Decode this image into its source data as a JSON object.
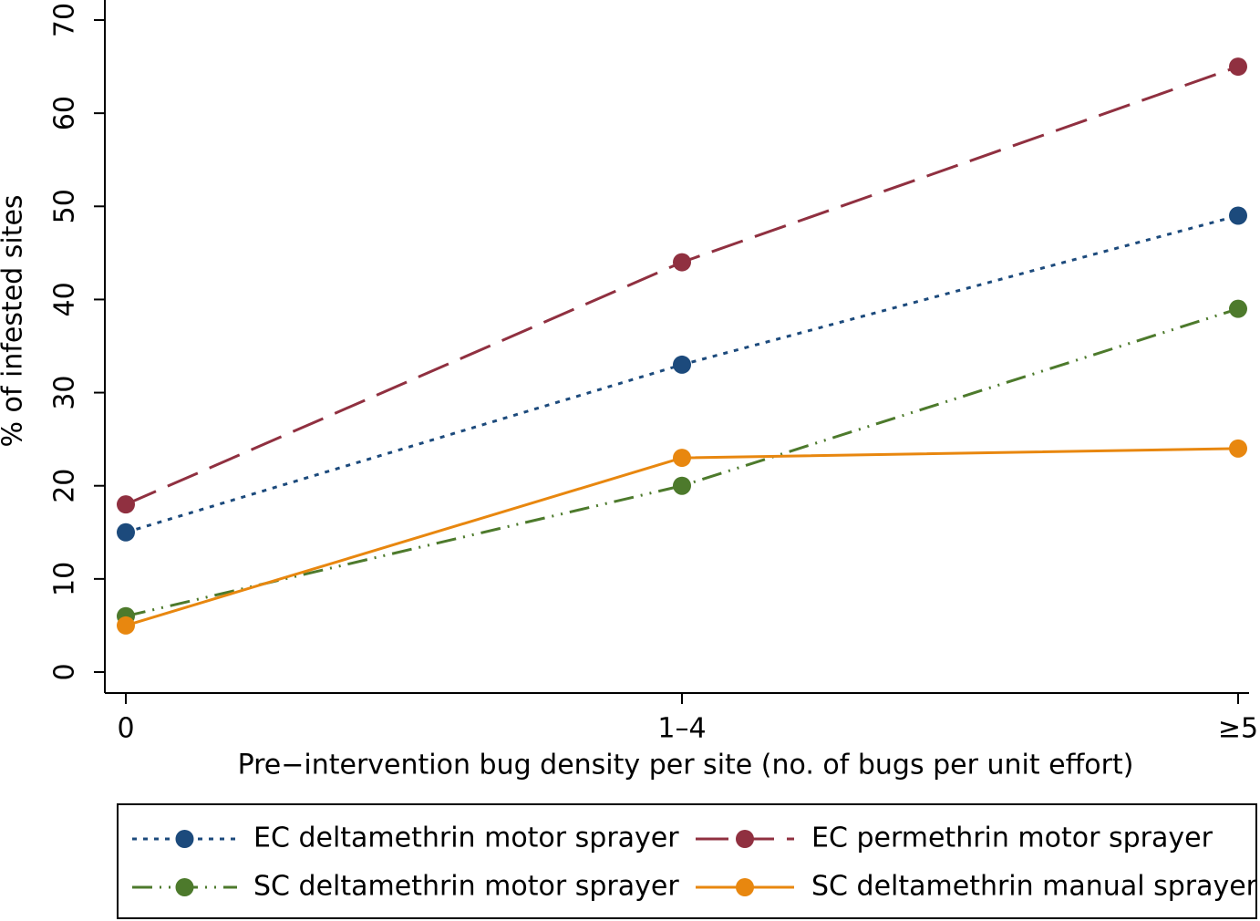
{
  "chart_data": {
    "type": "line",
    "x_label": "Pre−intervention bug density per site (no. of bugs per unit effort)",
    "y_label": "% of infested sites",
    "categories": [
      "0",
      "1–4",
      "≥5"
    ],
    "ylim": [
      0,
      70
    ],
    "yticks": [
      0,
      10,
      20,
      30,
      40,
      50,
      60,
      70
    ],
    "grid": false,
    "legend": "bottom",
    "series": [
      {
        "name": "EC deltamethrin motor sprayer",
        "color": "#1c4a7c",
        "linestyle": "dotted",
        "values": [
          15,
          33,
          49
        ]
      },
      {
        "name": "EC permethrin motor sprayer",
        "color": "#903040",
        "linestyle": "longdash",
        "values": [
          18,
          44,
          65
        ]
      },
      {
        "name": "SC deltamethrin motor sprayer",
        "color": "#4d7a2c",
        "linestyle": "dashdotdot",
        "values": [
          6,
          20,
          39
        ]
      },
      {
        "name": "SC deltamethrin manual sprayer",
        "color": "#e8870f",
        "linestyle": "solid",
        "values": [
          5,
          23,
          24
        ]
      }
    ]
  }
}
